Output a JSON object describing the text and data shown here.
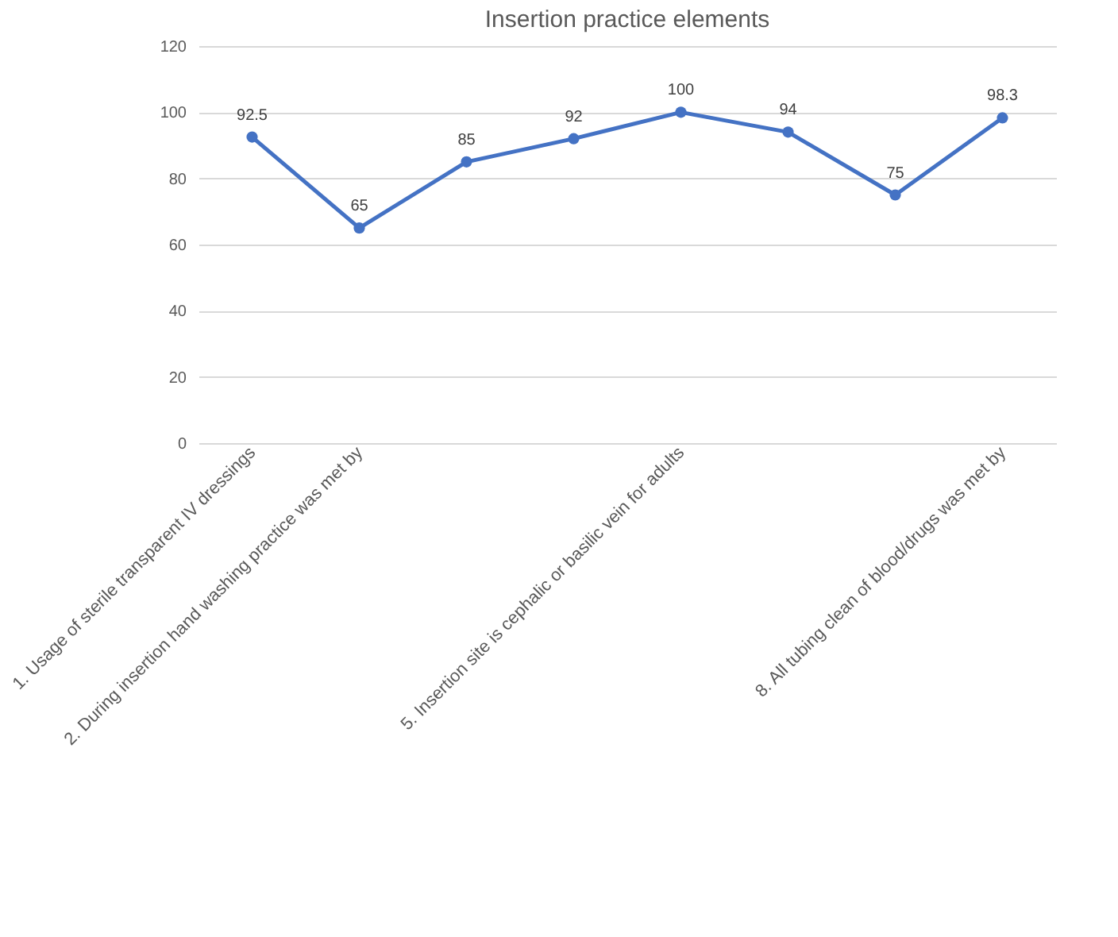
{
  "chart_data": {
    "type": "line",
    "title": "Insertion practice elements",
    "categories": [
      "1. Usage of sterile transparent IV dressings",
      "2. During insertion hand washing practice was met by",
      null,
      null,
      "5. Insertion site is cephalic or basilic vein for adults",
      null,
      null,
      "8. All tubing clean of blood/drugs was met by"
    ],
    "series": [
      {
        "color": "#4472c4",
        "values": [
          92.5,
          65,
          85,
          92,
          100,
          94,
          75,
          98.3
        ]
      }
    ],
    "ylim": [
      0,
      120
    ],
    "yticks": [
      0,
      20,
      40,
      60,
      80,
      100,
      120
    ],
    "grid": "y",
    "marker": "circle",
    "line_style": "solid",
    "data_labels": true
  }
}
